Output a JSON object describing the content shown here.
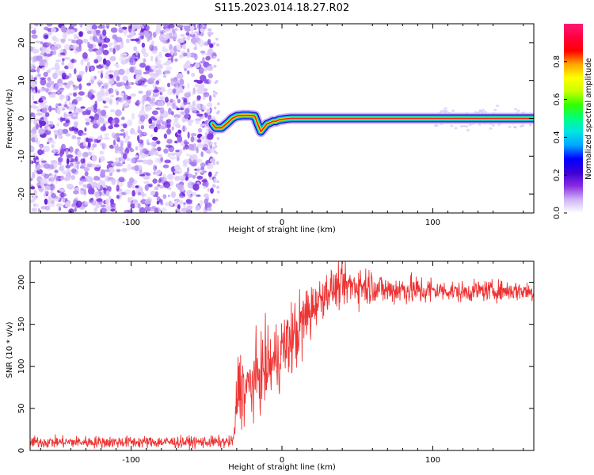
{
  "title": "S115.2023.014.18.27.R02",
  "chart_data": [
    {
      "type": "heatmap",
      "xlabel": "Height of straight line (km)",
      "ylabel": "Frequency (Hz)",
      "xlim": [
        -167,
        167
      ],
      "ylim": [
        -25,
        25
      ],
      "xticks": [
        -100,
        0,
        100
      ],
      "yticks": [
        -20,
        -10,
        0,
        10,
        20
      ],
      "noise_region_x": [
        -167,
        -45
      ],
      "signal_trace": {
        "x": [
          -46,
          -44,
          -40,
          -36,
          -33,
          -30,
          -26,
          -22,
          -18,
          -16,
          -14,
          -12,
          -10,
          -8,
          -6,
          -4,
          -2,
          0,
          3,
          6,
          10,
          20,
          40,
          60,
          80,
          100,
          120,
          140,
          160,
          167
        ],
        "y": [
          -1.5,
          -2.5,
          -2.5,
          -1.2,
          0,
          0.6,
          0.8,
          0.8,
          0.6,
          -1.5,
          -3.5,
          -2.5,
          -1.5,
          -1.2,
          -0.8,
          -0.8,
          -0.4,
          -0.3,
          -0.1,
          0,
          0,
          0,
          0,
          0,
          0,
          0,
          0,
          0,
          0,
          0
        ]
      },
      "colorbar": {
        "label": "Normalized spectral amplitude",
        "range": [
          0,
          1
        ],
        "ticks": [
          0.0,
          0.2,
          0.4,
          0.6,
          0.8
        ],
        "tick_labels": [
          "0.0",
          "0.2",
          "0.4",
          "0.6",
          "0.8"
        ],
        "colors": [
          "#ffffff",
          "#cfb3f5",
          "#8a2be2",
          "#3a00d6",
          "#0000ff",
          "#00a5ff",
          "#00e5e5",
          "#00ff7f",
          "#33ff00",
          "#c8ff00",
          "#ffff00",
          "#ffa500",
          "#ff0000",
          "#ff0040",
          "#ff1a75"
        ]
      }
    },
    {
      "type": "line",
      "xlabel": "Height of straight line (km)",
      "ylabel": "SNR (10 * v/v)",
      "xlim": [
        -167,
        167
      ],
      "ylim": [
        0,
        225
      ],
      "xticks": [
        -100,
        0,
        100
      ],
      "yticks": [
        0,
        50,
        100,
        150,
        200
      ],
      "color": "#ee3333",
      "series": [
        {
          "x": [
            -167,
            -150,
            -130,
            -110,
            -90,
            -70,
            -50,
            -40,
            -33,
            -31,
            -30,
            -29,
            -27,
            -24,
            -20,
            -15,
            -10,
            -5,
            0,
            5,
            10,
            15,
            20,
            25,
            30,
            40,
            50,
            60,
            70,
            80,
            90,
            100,
            110,
            120,
            130,
            140,
            150,
            160,
            167
          ],
          "values": [
            10,
            10,
            10,
            10,
            10,
            10,
            10,
            10,
            10,
            25,
            60,
            80,
            75,
            70,
            80,
            90,
            100,
            105,
            120,
            130,
            140,
            155,
            170,
            180,
            190,
            195,
            197,
            195,
            190,
            192,
            190,
            190,
            190,
            188,
            190,
            190,
            190,
            190,
            188
          ]
        }
      ]
    }
  ]
}
